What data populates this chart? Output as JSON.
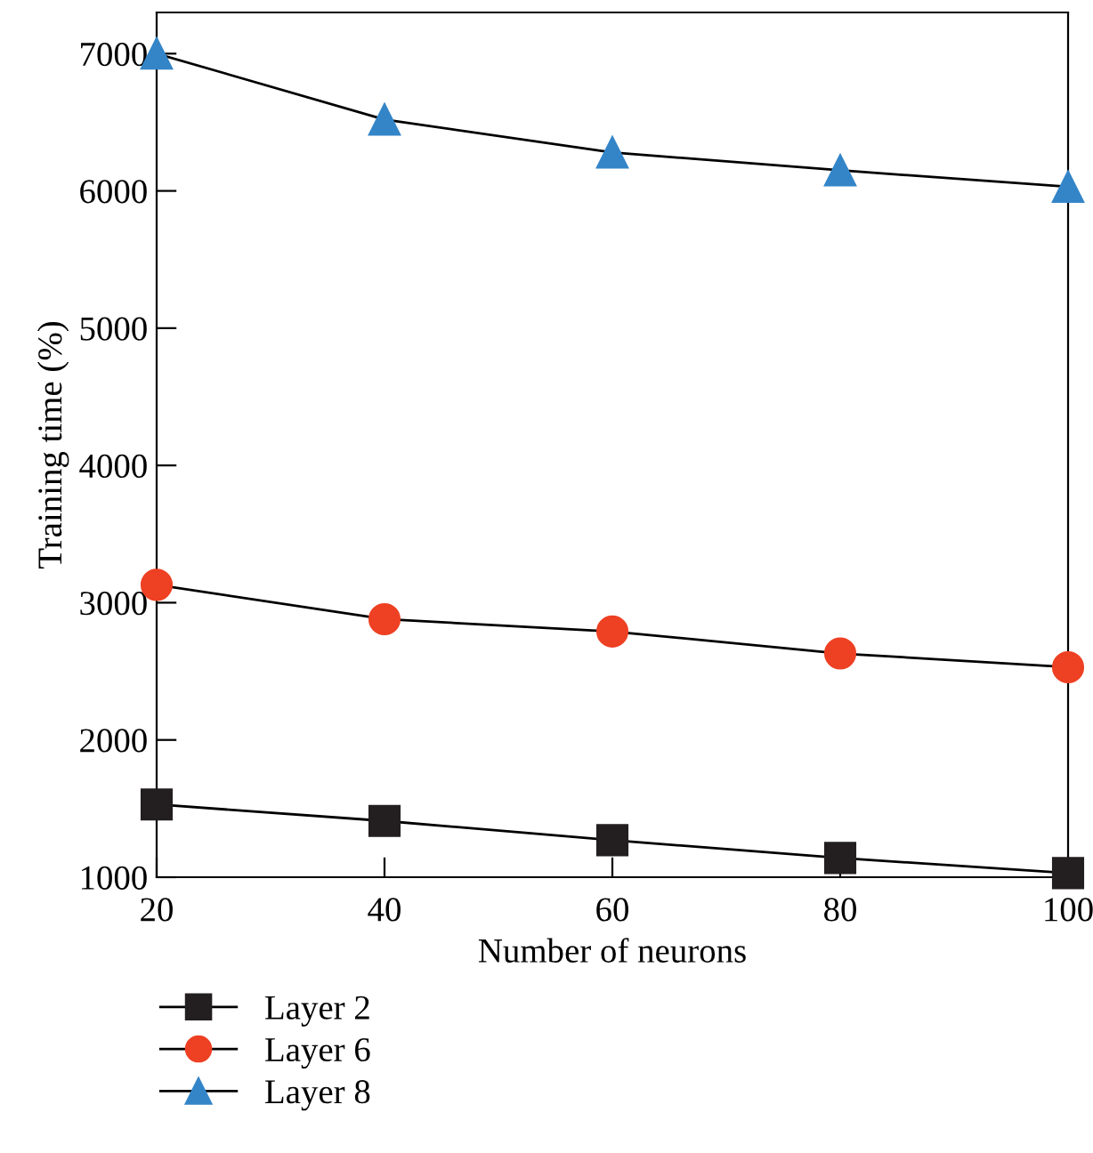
{
  "chart_data": {
    "type": "line",
    "xlabel": "Number of neurons",
    "ylabel": "Training time (%)",
    "x": [
      20,
      40,
      60,
      80,
      100
    ],
    "series": [
      {
        "name": "Layer 2",
        "color": "#231f20",
        "marker": "square",
        "values": [
          1530,
          1410,
          1270,
          1140,
          1030
        ]
      },
      {
        "name": "Layer 6",
        "color": "#ee4023",
        "marker": "circle",
        "values": [
          3130,
          2880,
          2790,
          2630,
          2530
        ]
      },
      {
        "name": "Layer 8",
        "color": "#3485c8",
        "marker": "triangle",
        "values": [
          7000,
          6520,
          6280,
          6150,
          6030
        ]
      }
    ],
    "xlim": [
      20,
      100
    ],
    "xticks": [
      20,
      40,
      60,
      80,
      100
    ],
    "ylim": [
      1000,
      7300
    ],
    "yticks": [
      1000,
      2000,
      3000,
      4000,
      5000,
      6000,
      7000
    ],
    "grid": false,
    "legend": "bottom left",
    "line_style": "solid"
  }
}
